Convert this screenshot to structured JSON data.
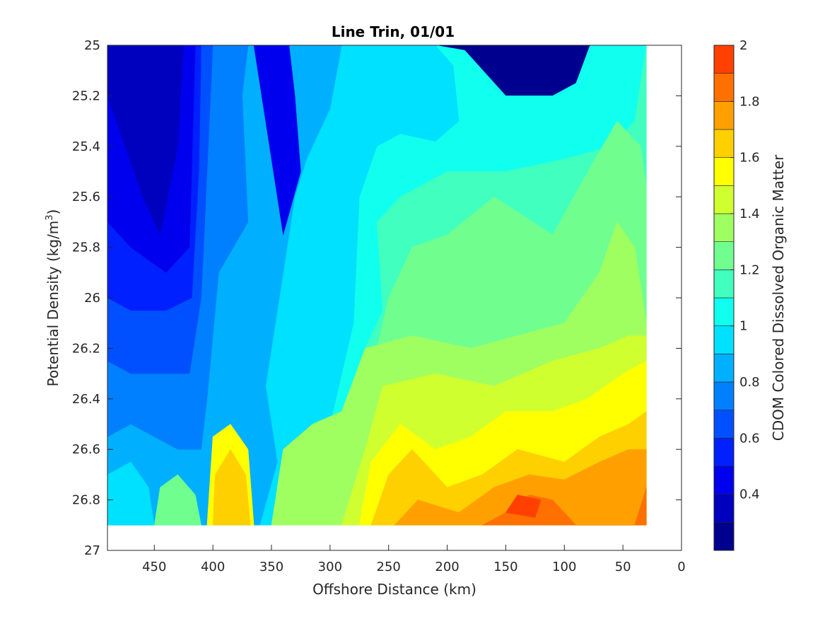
{
  "chart_data": {
    "type": "contour",
    "title": "Line Trin, 01/01",
    "xlabel": "Offshore Distance (km)",
    "ylabel_main": "Potential Density (kg/m",
    "ylabel_sup": "3",
    "ylabel_close": ")",
    "colorbar_label": "CDOM Colored Dissolved Organic Matter",
    "x_axis_reversed": true,
    "xlim": [
      490,
      0
    ],
    "ylim": [
      25,
      27
    ],
    "y_axis_reversed": true,
    "x_ticks": [
      450,
      400,
      350,
      300,
      250,
      200,
      150,
      100,
      50,
      0
    ],
    "x_tick_labels": [
      "450",
      "400",
      "350",
      "300",
      "250",
      "200",
      "150",
      "100",
      "50",
      "0"
    ],
    "y_ticks": [
      25,
      25.2,
      25.4,
      25.6,
      25.8,
      26,
      26.2,
      26.4,
      26.6,
      26.8,
      27
    ],
    "y_tick_labels": [
      "25",
      "25.2",
      "25.4",
      "25.6",
      "25.8",
      "26",
      "26.2",
      "26.4",
      "26.6",
      "26.8",
      "27"
    ],
    "data_extent": {
      "x": [
        490,
        30
      ],
      "y": [
        25,
        26.9
      ]
    },
    "colorbar": {
      "clim": [
        0.2,
        2
      ],
      "ticks": [
        0.4,
        0.6,
        0.8,
        1,
        1.2,
        1.4,
        1.6,
        1.8,
        2
      ],
      "tick_labels": [
        "0.4",
        "0.6",
        "0.8",
        "1",
        "1.2",
        "1.4",
        "1.6",
        "1.8",
        "2"
      ],
      "levels": [
        {
          "range": [
            0.2,
            0.3
          ],
          "color": "#00008f"
        },
        {
          "range": [
            0.3,
            0.4
          ],
          "color": "#0000bf"
        },
        {
          "range": [
            0.4,
            0.5
          ],
          "color": "#0000ef"
        },
        {
          "range": [
            0.5,
            0.6
          ],
          "color": "#0020ff"
        },
        {
          "range": [
            0.6,
            0.7
          ],
          "color": "#0050ff"
        },
        {
          "range": [
            0.7,
            0.8
          ],
          "color": "#0080ff"
        },
        {
          "range": [
            0.8,
            0.9
          ],
          "color": "#00b0ff"
        },
        {
          "range": [
            0.9,
            1.0
          ],
          "color": "#00e0ff"
        },
        {
          "range": [
            1.0,
            1.1
          ],
          "color": "#10ffef"
        },
        {
          "range": [
            1.1,
            1.2
          ],
          "color": "#40ffbf"
        },
        {
          "range": [
            1.2,
            1.3
          ],
          "color": "#70ff8f"
        },
        {
          "range": [
            1.3,
            1.4
          ],
          "color": "#a0ff60"
        },
        {
          "range": [
            1.4,
            1.5
          ],
          "color": "#d0ff30"
        },
        {
          "range": [
            1.5,
            1.6
          ],
          "color": "#ffff00"
        },
        {
          "range": [
            1.6,
            1.7
          ],
          "color": "#ffd000"
        },
        {
          "range": [
            1.7,
            1.8
          ],
          "color": "#ffa000"
        },
        {
          "range": [
            1.8,
            1.9
          ],
          "color": "#ff7000"
        },
        {
          "range": [
            1.9,
            2.0
          ],
          "color": "#ff4000"
        }
      ]
    },
    "contour_bands": [
      {
        "level": 1.05,
        "color": "#10ffef",
        "polygon": [
          [
            490,
            25
          ],
          [
            210,
            25
          ],
          [
            185,
            25.02
          ],
          [
            150,
            25.2
          ],
          [
            110,
            25.2
          ],
          [
            90,
            25.15
          ],
          [
            78,
            25
          ],
          [
            30,
            25
          ],
          [
            30,
            26.9
          ],
          [
            490,
            26.9
          ]
        ]
      },
      {
        "level": 0.95,
        "color": "#00e0ff",
        "polygon": [
          [
            490,
            25
          ],
          [
            210,
            25
          ],
          [
            195,
            25.08
          ],
          [
            190,
            25.3
          ],
          [
            210,
            25.38
          ],
          [
            240,
            25.35
          ],
          [
            260,
            25.4
          ],
          [
            275,
            25.6
          ],
          [
            280,
            26.1
          ],
          [
            300,
            26.5
          ],
          [
            320,
            26.6
          ],
          [
            330,
            26.8
          ],
          [
            350,
            26.9
          ],
          [
            490,
            26.9
          ]
        ]
      },
      {
        "level": 0.85,
        "color": "#00b0ff",
        "polygon": [
          [
            490,
            25
          ],
          [
            290,
            25
          ],
          [
            300,
            25.25
          ],
          [
            320,
            25.45
          ],
          [
            330,
            25.6
          ],
          [
            340,
            25.9
          ],
          [
            355,
            26.35
          ],
          [
            345,
            26.65
          ],
          [
            360,
            26.9
          ],
          [
            490,
            26.9
          ]
        ]
      },
      {
        "level": 0.75,
        "color": "#0080ff",
        "polygon": [
          [
            490,
            25
          ],
          [
            370,
            25
          ],
          [
            375,
            25.2
          ],
          [
            370,
            25.7
          ],
          [
            395,
            25.9
          ],
          [
            405,
            26.4
          ],
          [
            410,
            26.6
          ],
          [
            430,
            26.6
          ],
          [
            470,
            26.5
          ],
          [
            490,
            26.55
          ]
        ]
      },
      {
        "level": 0.65,
        "color": "#0050ff",
        "polygon": [
          [
            490,
            25
          ],
          [
            400,
            25
          ],
          [
            405,
            25.5
          ],
          [
            410,
            26.0
          ],
          [
            420,
            26.3
          ],
          [
            440,
            26.3
          ],
          [
            470,
            26.3
          ],
          [
            490,
            26.25
          ]
        ]
      },
      {
        "level": 0.55,
        "color": "#0020ff",
        "polygon": [
          [
            490,
            25
          ],
          [
            410,
            25
          ],
          [
            412,
            25.5
          ],
          [
            418,
            26.0
          ],
          [
            440,
            26.05
          ],
          [
            470,
            26.05
          ],
          [
            490,
            26.0
          ]
        ]
      },
      {
        "level": 0.45,
        "color": "#0000ef",
        "polygon": [
          [
            490,
            25
          ],
          [
            415,
            25
          ],
          [
            420,
            25.8
          ],
          [
            440,
            25.9
          ],
          [
            470,
            25.8
          ],
          [
            490,
            25.7
          ]
        ]
      },
      {
        "level": 0.35,
        "color": "#0000bf",
        "polygon": [
          [
            490,
            25
          ],
          [
            425,
            25
          ],
          [
            430,
            25.4
          ],
          [
            445,
            25.75
          ],
          [
            460,
            25.6
          ],
          [
            490,
            25.2
          ]
        ]
      },
      {
        "level": 0.45,
        "color": "#0000ef",
        "polygon": [
          [
            365,
            25
          ],
          [
            335,
            25
          ],
          [
            330,
            25.2
          ],
          [
            325,
            25.5
          ],
          [
            340,
            25.75
          ],
          [
            355,
            25.3
          ]
        ]
      },
      {
        "level": 1.15,
        "color": "#40ffbf",
        "polygon": [
          [
            30,
            25
          ],
          [
            30,
            26.9
          ],
          [
            280,
            26.9
          ],
          [
            270,
            26.2
          ],
          [
            255,
            26.05
          ],
          [
            260,
            25.7
          ],
          [
            240,
            25.6
          ],
          [
            200,
            25.5
          ],
          [
            150,
            25.5
          ],
          [
            100,
            25.45
          ],
          [
            60,
            25.4
          ],
          [
            40,
            25.3
          ]
        ]
      },
      {
        "level": 1.25,
        "color": "#70ff8f",
        "polygon": [
          [
            30,
            25.55
          ],
          [
            30,
            26.9
          ],
          [
            270,
            26.9
          ],
          [
            260,
            26.2
          ],
          [
            250,
            26.0
          ],
          [
            230,
            25.8
          ],
          [
            200,
            25.75
          ],
          [
            160,
            25.6
          ],
          [
            110,
            25.75
          ],
          [
            80,
            25.5
          ],
          [
            55,
            25.3
          ],
          [
            35,
            25.4
          ]
        ]
      },
      {
        "level": 1.35,
        "color": "#a0ff60",
        "polygon": [
          [
            30,
            26.1
          ],
          [
            30,
            26.9
          ],
          [
            350,
            26.9
          ],
          [
            340,
            26.6
          ],
          [
            315,
            26.5
          ],
          [
            290,
            26.45
          ],
          [
            270,
            26.2
          ],
          [
            230,
            26.15
          ],
          [
            180,
            26.2
          ],
          [
            140,
            26.15
          ],
          [
            100,
            26.1
          ],
          [
            70,
            25.9
          ],
          [
            55,
            25.7
          ],
          [
            40,
            25.8
          ]
        ]
      },
      {
        "level": 1.45,
        "color": "#d0ff30",
        "polygon": [
          [
            30,
            26.15
          ],
          [
            30,
            26.9
          ],
          [
            290,
            26.9
          ],
          [
            270,
            26.6
          ],
          [
            255,
            26.35
          ],
          [
            210,
            26.3
          ],
          [
            160,
            26.35
          ],
          [
            110,
            26.25
          ],
          [
            70,
            26.2
          ],
          [
            45,
            26.15
          ]
        ]
      },
      {
        "level": 1.55,
        "color": "#ffff00",
        "polygon": [
          [
            30,
            26.25
          ],
          [
            30,
            26.9
          ],
          [
            275,
            26.9
          ],
          [
            265,
            26.65
          ],
          [
            240,
            26.5
          ],
          [
            210,
            26.6
          ],
          [
            180,
            26.55
          ],
          [
            150,
            26.45
          ],
          [
            110,
            26.45
          ],
          [
            80,
            26.4
          ],
          [
            50,
            26.3
          ]
        ]
      },
      {
        "level": 1.65,
        "color": "#ffd000",
        "polygon": [
          [
            30,
            26.45
          ],
          [
            30,
            26.9
          ],
          [
            265,
            26.9
          ],
          [
            250,
            26.7
          ],
          [
            230,
            26.6
          ],
          [
            200,
            26.75
          ],
          [
            170,
            26.7
          ],
          [
            140,
            26.6
          ],
          [
            100,
            26.65
          ],
          [
            70,
            26.55
          ],
          [
            45,
            26.5
          ]
        ]
      },
      {
        "level": 1.75,
        "color": "#ffa000",
        "polygon": [
          [
            30,
            26.6
          ],
          [
            30,
            26.9
          ],
          [
            245,
            26.9
          ],
          [
            225,
            26.8
          ],
          [
            190,
            26.85
          ],
          [
            160,
            26.75
          ],
          [
            130,
            26.7
          ],
          [
            100,
            26.72
          ],
          [
            70,
            26.65
          ],
          [
            45,
            26.6
          ]
        ]
      },
      {
        "level": 1.85,
        "color": "#ff7000",
        "polygon": [
          [
            30,
            26.75
          ],
          [
            30,
            26.9
          ],
          [
            90,
            26.9
          ],
          [
            110,
            26.8
          ],
          [
            130,
            26.78
          ],
          [
            150,
            26.85
          ],
          [
            170,
            26.9
          ],
          [
            40,
            26.9
          ]
        ]
      },
      {
        "level": 1.95,
        "color": "#ff4000",
        "polygon": [
          [
            120,
            26.8
          ],
          [
            140,
            26.78
          ],
          [
            150,
            26.85
          ],
          [
            125,
            26.87
          ]
        ]
      },
      {
        "level": 1.55,
        "color": "#ffff00",
        "polygon": [
          [
            405,
            26.9
          ],
          [
            400,
            26.55
          ],
          [
            385,
            26.5
          ],
          [
            370,
            26.6
          ],
          [
            365,
            26.9
          ]
        ]
      },
      {
        "level": 1.65,
        "color": "#ffd000",
        "polygon": [
          [
            400,
            26.9
          ],
          [
            398,
            26.7
          ],
          [
            385,
            26.6
          ],
          [
            372,
            26.7
          ],
          [
            368,
            26.9
          ]
        ]
      },
      {
        "level": 1.25,
        "color": "#70ff8f",
        "polygon": [
          [
            450,
            26.9
          ],
          [
            445,
            26.75
          ],
          [
            430,
            26.7
          ],
          [
            415,
            26.78
          ],
          [
            410,
            26.9
          ]
        ]
      },
      {
        "level": 0.95,
        "color": "#00e0ff",
        "polygon": [
          [
            490,
            26.7
          ],
          [
            470,
            26.65
          ],
          [
            455,
            26.75
          ],
          [
            450,
            26.9
          ],
          [
            490,
            26.9
          ]
        ]
      }
    ]
  }
}
